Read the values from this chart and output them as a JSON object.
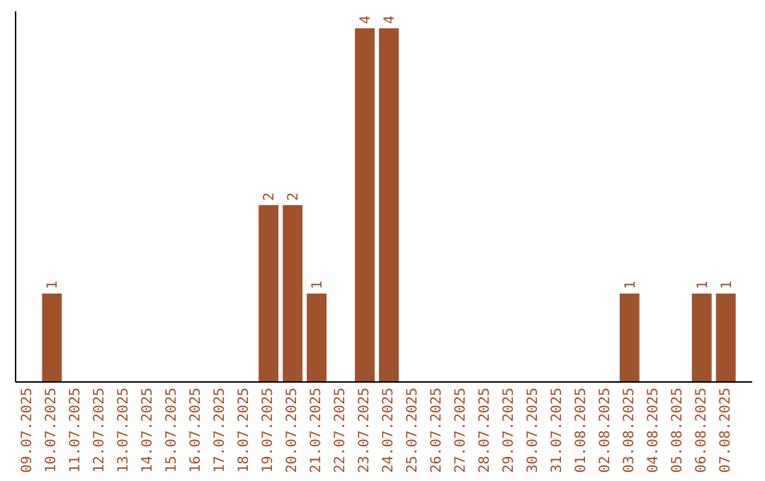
{
  "chart_data": {
    "type": "bar",
    "categories": [
      "09.07.2025",
      "10.07.2025",
      "11.07.2025",
      "12.07.2025",
      "13.07.2025",
      "14.07.2025",
      "15.07.2025",
      "16.07.2025",
      "17.07.2025",
      "18.07.2025",
      "19.07.2025",
      "20.07.2025",
      "21.07.2025",
      "22.07.2025",
      "23.07.2025",
      "24.07.2025",
      "25.07.2025",
      "26.07.2025",
      "27.07.2025",
      "28.07.2025",
      "29.07.2025",
      "30.07.2025",
      "31.07.2025",
      "01.08.2025",
      "02.08.2025",
      "03.08.2025",
      "04.08.2025",
      "05.08.2025",
      "06.08.2025",
      "07.08.2025"
    ],
    "values": [
      0,
      1,
      0,
      0,
      0,
      0,
      0,
      0,
      0,
      0,
      2,
      2,
      1,
      0,
      4,
      4,
      0,
      0,
      0,
      0,
      0,
      0,
      0,
      0,
      0,
      1,
      0,
      0,
      1,
      1
    ],
    "value_labels": [
      null,
      "1",
      null,
      null,
      null,
      null,
      null,
      null,
      null,
      null,
      "2",
      "2",
      "1",
      null,
      "4",
      "4",
      null,
      null,
      null,
      null,
      null,
      null,
      null,
      null,
      null,
      "1",
      null,
      null,
      "1",
      "1"
    ],
    "color": "#a0522d",
    "tick_labels": "x"
  }
}
